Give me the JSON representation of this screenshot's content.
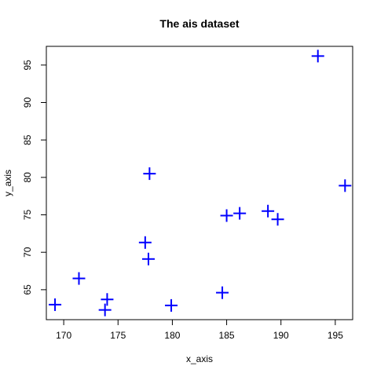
{
  "chart_data": {
    "type": "scatter",
    "title": "The ais dataset",
    "xlabel": "x_axis",
    "ylabel": "y_axis",
    "xlim": [
      168.4,
      196.6
    ],
    "ylim": [
      61.0,
      97.5
    ],
    "x_ticks": [
      170,
      175,
      180,
      185,
      190,
      195
    ],
    "y_ticks": [
      65,
      70,
      75,
      80,
      85,
      90,
      95
    ],
    "grid": false,
    "marker": "plus",
    "color": "#0000ff",
    "points": [
      {
        "x": 169.2,
        "y": 63.0
      },
      {
        "x": 171.4,
        "y": 66.5
      },
      {
        "x": 173.8,
        "y": 62.3
      },
      {
        "x": 174.0,
        "y": 63.7
      },
      {
        "x": 177.5,
        "y": 71.3
      },
      {
        "x": 177.8,
        "y": 69.1
      },
      {
        "x": 177.9,
        "y": 80.5
      },
      {
        "x": 179.9,
        "y": 62.9
      },
      {
        "x": 184.6,
        "y": 64.6
      },
      {
        "x": 185.0,
        "y": 74.9
      },
      {
        "x": 186.2,
        "y": 75.2
      },
      {
        "x": 188.8,
        "y": 75.5
      },
      {
        "x": 189.7,
        "y": 74.4
      },
      {
        "x": 193.4,
        "y": 96.2
      },
      {
        "x": 195.9,
        "y": 78.9
      }
    ]
  }
}
